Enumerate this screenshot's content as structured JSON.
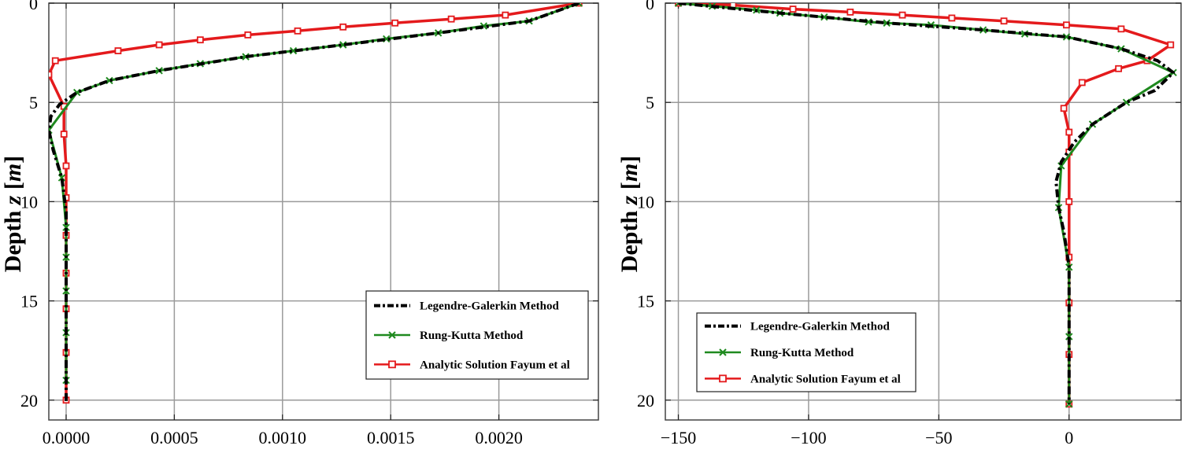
{
  "chart_data": [
    {
      "type": "line",
      "ylabel_prefix": "Depth ",
      "ylabel_var": "z",
      "ylabel_unit": "m",
      "xlim": [
        -8e-05,
        0.00246
      ],
      "ylim": [
        0,
        21
      ],
      "y_inverted": true,
      "grid": true,
      "x_ticks": [
        0,
        0.0005,
        0.001,
        0.0015,
        0.002
      ],
      "x_tick_labels": [
        "0.0000",
        "0.0005",
        "0.0010",
        "0.0015",
        "0.0020"
      ],
      "y_ticks": [
        0,
        5,
        10,
        15,
        20
      ],
      "y_tick_labels": [
        "0",
        "5",
        "10",
        "15",
        "20"
      ],
      "legend_position": "bottom-right",
      "series": [
        {
          "name": "Legendre-Galerkin Method",
          "color": "#000000",
          "style": "dash-dot",
          "points": [
            [
              0.00237,
              0
            ],
            [
              0.00214,
              0.9
            ],
            [
              0.00172,
              1.5
            ],
            [
              0.00128,
              2.1
            ],
            [
              0.00083,
              2.7
            ],
            [
              0.00043,
              3.4
            ],
            [
              0.0002,
              3.9
            ],
            [
              5e-05,
              4.5
            ],
            [
              -3e-05,
              5.1
            ],
            [
              -7e-05,
              5.7
            ],
            [
              -8e-05,
              6.4
            ],
            [
              -6e-05,
              7.4
            ],
            [
              -2e-05,
              8.8
            ],
            [
              0,
              10.5
            ],
            [
              0,
              13.0
            ],
            [
              0,
              16.0
            ],
            [
              0,
              20.1
            ]
          ]
        },
        {
          "name": "Rung-Kutta Method",
          "color": "#1f8a1f",
          "style": "solid-x",
          "points": [
            [
              0.00237,
              0
            ],
            [
              0.00214,
              0.9
            ],
            [
              0.00193,
              1.15
            ],
            [
              0.00172,
              1.5
            ],
            [
              0.00148,
              1.8
            ],
            [
              0.00128,
              2.1
            ],
            [
              0.00105,
              2.4
            ],
            [
              0.00083,
              2.7
            ],
            [
              0.00062,
              3.05
            ],
            [
              0.00043,
              3.4
            ],
            [
              0.0002,
              3.9
            ],
            [
              5e-05,
              4.5
            ],
            [
              -8e-05,
              6.4
            ],
            [
              -2e-05,
              8.8
            ],
            [
              0,
              11.3
            ],
            [
              0,
              12.8
            ],
            [
              0,
              14.5
            ],
            [
              0,
              16.6
            ],
            [
              0,
              19.0
            ]
          ]
        },
        {
          "name": "Analytic Solution Fayum et al",
          "color": "#e41a1c",
          "style": "solid-square",
          "points": [
            [
              0.00237,
              0
            ],
            [
              0.00203,
              0.6
            ],
            [
              0.00178,
              0.8
            ],
            [
              0.00152,
              1.0
            ],
            [
              0.00128,
              1.2
            ],
            [
              0.00107,
              1.4
            ],
            [
              0.00084,
              1.6
            ],
            [
              0.00062,
              1.85
            ],
            [
              0.00043,
              2.1
            ],
            [
              0.00024,
              2.4
            ],
            [
              -5e-05,
              2.9
            ],
            [
              -8e-05,
              3.6
            ],
            [
              -1e-05,
              5.2
            ],
            [
              -1e-05,
              6.6
            ],
            [
              0,
              8.2
            ],
            [
              0,
              9.8
            ],
            [
              0,
              11.7
            ],
            [
              0,
              13.6
            ],
            [
              0,
              15.4
            ],
            [
              0,
              17.6
            ],
            [
              0,
              20.0
            ]
          ]
        }
      ]
    },
    {
      "type": "line",
      "ylabel_prefix": "Depth ",
      "ylabel_var": "z",
      "ylabel_unit": "m",
      "xlim": [
        -155,
        43
      ],
      "ylim": [
        0,
        21
      ],
      "y_inverted": true,
      "grid": true,
      "x_ticks": [
        -150,
        -100,
        -50,
        0
      ],
      "x_tick_labels": [
        "−150",
        "−100",
        "−50",
        "0"
      ],
      "y_ticks": [
        0,
        5,
        10,
        15,
        20
      ],
      "y_tick_labels": [
        "0",
        "5",
        "10",
        "15",
        "20"
      ],
      "legend_position": "bottom-left",
      "series": [
        {
          "name": "Legendre-Galerkin Method",
          "color": "#000000",
          "style": "dash-dot",
          "points": [
            [
              -150,
              0
            ],
            [
              -111,
              0.5
            ],
            [
              -70,
              1.0
            ],
            [
              -33,
              1.35
            ],
            [
              -1,
              1.7
            ],
            [
              20,
              2.3
            ],
            [
              34,
              2.9
            ],
            [
              40,
              3.5
            ],
            [
              33,
              4.4
            ],
            [
              22,
              5.0
            ],
            [
              9,
              6.1
            ],
            [
              2,
              7.0
            ],
            [
              -3,
              8.0
            ],
            [
              -5,
              9.0
            ],
            [
              -4,
              10.3
            ],
            [
              -2,
              11.5
            ],
            [
              0,
              13.3
            ],
            [
              0,
              16.8
            ],
            [
              0,
              20.2
            ]
          ]
        },
        {
          "name": "Rung-Kutta Method",
          "color": "#1f8a1f",
          "style": "solid-x",
          "points": [
            [
              -150,
              0
            ],
            [
              -137,
              0.15
            ],
            [
              -120,
              0.35
            ],
            [
              -111,
              0.5
            ],
            [
              -94,
              0.7
            ],
            [
              -77,
              0.95
            ],
            [
              -70,
              1.0
            ],
            [
              -53,
              1.1
            ],
            [
              -33,
              1.35
            ],
            [
              -17,
              1.55
            ],
            [
              -1,
              1.7
            ],
            [
              20,
              2.3
            ],
            [
              40,
              3.5
            ],
            [
              22,
              5.0
            ],
            [
              9,
              6.1
            ],
            [
              -3,
              8.2
            ],
            [
              -4,
              10.3
            ],
            [
              0,
              13.3
            ],
            [
              0,
              16.8
            ],
            [
              0,
              20.2
            ]
          ]
        },
        {
          "name": "Analytic Solution Fayum et al",
          "color": "#e41a1c",
          "style": "solid-square",
          "points": [
            [
              -150,
              0
            ],
            [
              -129,
              0.1
            ],
            [
              -106,
              0.3
            ],
            [
              -84,
              0.45
            ],
            [
              -64,
              0.6
            ],
            [
              -45,
              0.75
            ],
            [
              -25,
              0.9
            ],
            [
              -1,
              1.1
            ],
            [
              20,
              1.3
            ],
            [
              39,
              2.1
            ],
            [
              30,
              2.9
            ],
            [
              19,
              3.3
            ],
            [
              5,
              4.0
            ],
            [
              -2,
              5.3
            ],
            [
              0,
              6.5
            ],
            [
              0,
              7.5
            ],
            [
              0,
              10.0
            ],
            [
              0,
              12.8
            ],
            [
              0,
              15.1
            ],
            [
              0,
              17.7
            ],
            [
              0,
              20.2
            ]
          ]
        }
      ]
    }
  ]
}
